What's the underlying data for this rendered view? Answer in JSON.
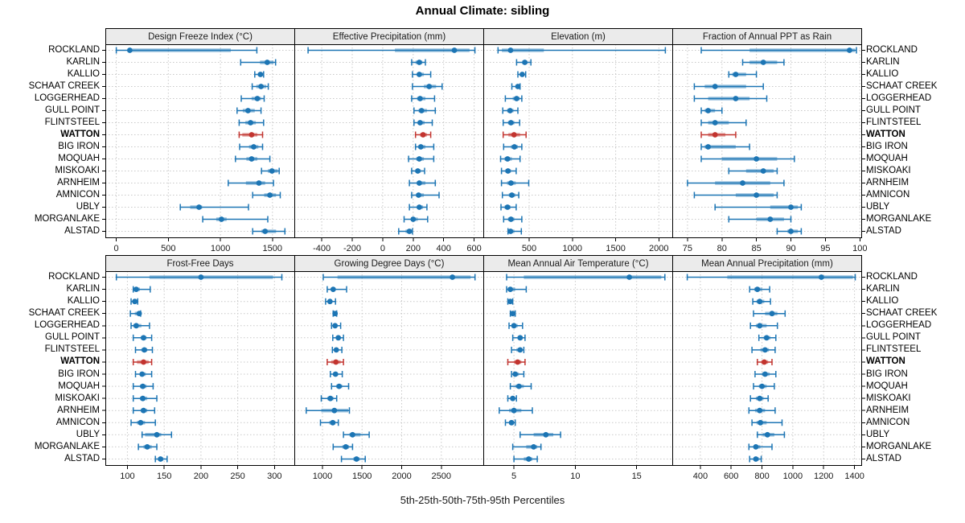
{
  "title": "Annual Climate: sibling",
  "caption": "5th-25th-50th-75th-95th Percentiles",
  "percentiles": [
    5,
    25,
    50,
    75,
    95
  ],
  "stations": [
    "ROCKLAND",
    "KARLIN",
    "KALLIO",
    "SCHAAT CREEK",
    "LOGGERHEAD",
    "GULL POINT",
    "FLINTSTEEL",
    "WATTON",
    "BIG IRON",
    "MOQUAH",
    "MISKOAKI",
    "ARNHEIM",
    "AMNICON",
    "UBLY",
    "MORGANLAKE",
    "ALSTAD"
  ],
  "highlight_station": "WATTON",
  "colors": {
    "series": "#1c75b4",
    "highlight": "#c2342f",
    "strip_bg": "#ebebeb",
    "grid": "#c9c9c9",
    "border": "#000000",
    "tick_label": "#1a1a1a"
  },
  "chart_data": [
    {
      "type": "dotplot",
      "title": "Design Freeze Index (°C)",
      "xlim": [
        -105,
        1710
      ],
      "ticks": [
        0,
        500,
        1000,
        1500
      ],
      "values_note": "rows aligned to stations; each row = [p5,p25,p50,p75,p95]",
      "values": [
        [
          0,
          110,
          130,
          1100,
          1350
        ],
        [
          1195,
          1380,
          1450,
          1510,
          1530
        ],
        [
          1330,
          1360,
          1385,
          1405,
          1415
        ],
        [
          1305,
          1345,
          1390,
          1440,
          1460
        ],
        [
          1200,
          1300,
          1355,
          1390,
          1420
        ],
        [
          1160,
          1215,
          1265,
          1330,
          1390
        ],
        [
          1180,
          1240,
          1290,
          1340,
          1415
        ],
        [
          1180,
          1210,
          1300,
          1355,
          1405
        ],
        [
          1185,
          1275,
          1320,
          1365,
          1405
        ],
        [
          1145,
          1250,
          1300,
          1355,
          1475
        ],
        [
          1395,
          1455,
          1495,
          1550,
          1565
        ],
        [
          1075,
          1245,
          1370,
          1430,
          1510
        ],
        [
          1310,
          1420,
          1475,
          1535,
          1575
        ],
        [
          615,
          710,
          795,
          825,
          1270
        ],
        [
          830,
          960,
          1010,
          1060,
          1455
        ],
        [
          1310,
          1395,
          1430,
          1535,
          1620
        ]
      ]
    },
    {
      "type": "dotplot",
      "title": "Effective Precipitation (mm)",
      "xlim": [
        -580,
        660
      ],
      "ticks": [
        -400,
        -200,
        0,
        200,
        400,
        600
      ],
      "values": [
        [
          -490,
          80,
          470,
          570,
          605
        ],
        [
          190,
          215,
          240,
          260,
          280
        ],
        [
          195,
          225,
          240,
          270,
          315
        ],
        [
          195,
          270,
          305,
          350,
          390
        ],
        [
          190,
          225,
          245,
          280,
          340
        ],
        [
          205,
          235,
          255,
          290,
          345
        ],
        [
          205,
          230,
          245,
          275,
          325
        ],
        [
          215,
          245,
          265,
          290,
          315
        ],
        [
          215,
          235,
          250,
          280,
          335
        ],
        [
          170,
          220,
          240,
          270,
          335
        ],
        [
          190,
          215,
          230,
          250,
          275
        ],
        [
          175,
          225,
          240,
          280,
          345
        ],
        [
          190,
          220,
          235,
          270,
          370
        ],
        [
          175,
          225,
          240,
          265,
          290
        ],
        [
          140,
          185,
          200,
          230,
          295
        ],
        [
          105,
          150,
          175,
          190,
          195
        ]
      ]
    },
    {
      "type": "dotplot",
      "title": "Elevation (m)",
      "xlim": [
        -30,
        2155
      ],
      "ticks": [
        500,
        1000,
        1500,
        2000
      ],
      "values": [
        [
          140,
          185,
          285,
          670,
          2075
        ],
        [
          355,
          420,
          450,
          480,
          520
        ],
        [
          370,
          400,
          420,
          440,
          460
        ],
        [
          300,
          345,
          370,
          385,
          395
        ],
        [
          225,
          310,
          355,
          390,
          415
        ],
        [
          195,
          245,
          280,
          320,
          370
        ],
        [
          200,
          255,
          290,
          330,
          390
        ],
        [
          200,
          260,
          325,
          395,
          465
        ],
        [
          205,
          290,
          330,
          370,
          415
        ],
        [
          170,
          215,
          250,
          300,
          395
        ],
        [
          180,
          225,
          255,
          290,
          350
        ],
        [
          180,
          245,
          290,
          345,
          495
        ],
        [
          190,
          265,
          300,
          340,
          380
        ],
        [
          175,
          215,
          250,
          285,
          350
        ],
        [
          205,
          255,
          290,
          330,
          415
        ],
        [
          255,
          270,
          285,
          330,
          410
        ]
      ]
    },
    {
      "type": "dotplot",
      "title": "Fraction of Annual PPT as Rain",
      "xlim": [
        72.8,
        100.2
      ],
      "ticks": [
        75,
        80,
        85,
        90,
        95,
        100
      ],
      "values": [
        [
          77,
          84,
          98.5,
          99.3,
          99.5
        ],
        [
          83,
          84,
          86,
          88,
          89
        ],
        [
          81,
          81.5,
          82,
          83.5,
          85
        ],
        [
          76,
          77.5,
          79,
          83.5,
          86
        ],
        [
          76,
          78,
          82,
          84,
          86.5
        ],
        [
          77,
          77.5,
          78,
          79,
          80
        ],
        [
          77,
          78,
          79,
          81,
          83.5
        ],
        [
          77,
          78,
          79,
          80.5,
          82
        ],
        [
          77,
          77.5,
          78,
          82,
          84
        ],
        [
          77,
          80,
          85,
          88,
          90.5
        ],
        [
          81,
          83.5,
          86,
          87.5,
          88
        ],
        [
          75,
          79,
          83,
          87,
          89
        ],
        [
          76,
          82,
          85,
          87.5,
          88
        ],
        [
          79,
          87,
          90,
          91,
          91.5
        ],
        [
          81,
          85,
          87,
          89,
          90
        ],
        [
          88,
          89.5,
          90,
          91,
          91.5
        ]
      ]
    },
    {
      "type": "dotplot",
      "title": "Frost-Free Days",
      "xlim": [
        70,
        327
      ],
      "ticks": [
        100,
        150,
        200,
        250,
        300
      ],
      "values": [
        [
          85,
          130,
          200,
          298,
          310
        ],
        [
          108,
          110,
          112,
          117,
          131
        ],
        [
          105,
          108,
          110,
          112,
          114
        ],
        [
          104,
          110,
          116,
          117,
          118
        ],
        [
          105,
          108,
          112,
          119,
          130
        ],
        [
          108,
          118,
          122,
          126,
          133
        ],
        [
          111,
          119,
          123,
          127,
          134
        ],
        [
          108,
          113,
          122,
          129,
          133
        ],
        [
          111,
          117,
          120,
          125,
          133
        ],
        [
          108,
          117,
          121,
          126,
          135
        ],
        [
          108,
          117,
          121,
          127,
          140
        ],
        [
          108,
          118,
          122,
          127,
          137
        ],
        [
          105,
          113,
          118,
          124,
          138
        ],
        [
          120,
          124,
          140,
          146,
          160
        ],
        [
          115,
          122,
          127,
          133,
          140
        ],
        [
          138,
          142,
          145,
          149,
          154
        ]
      ]
    },
    {
      "type": "dotplot",
      "title": "Growing Degree Days (°C)",
      "xlim": [
        645,
        3030
      ],
      "ticks": [
        1000,
        1500,
        2000,
        2500
      ],
      "values": [
        [
          1010,
          1190,
          2640,
          2870,
          2925
        ],
        [
          1060,
          1110,
          1135,
          1165,
          1305
        ],
        [
          1040,
          1075,
          1095,
          1120,
          1165
        ],
        [
          1135,
          1150,
          1160,
          1172,
          1180
        ],
        [
          1115,
          1140,
          1160,
          1185,
          1230
        ],
        [
          1130,
          1170,
          1200,
          1225,
          1265
        ],
        [
          1125,
          1155,
          1175,
          1200,
          1245
        ],
        [
          1060,
          1110,
          1170,
          1230,
          1265
        ],
        [
          1100,
          1140,
          1165,
          1195,
          1250
        ],
        [
          1115,
          1175,
          1210,
          1250,
          1330
        ],
        [
          985,
          1060,
          1100,
          1140,
          1180
        ],
        [
          795,
          985,
          1150,
          1325,
          1340
        ],
        [
          975,
          1085,
          1130,
          1165,
          1200
        ],
        [
          1265,
          1340,
          1380,
          1480,
          1590
        ],
        [
          1135,
          1250,
          1295,
          1335,
          1380
        ],
        [
          1240,
          1390,
          1430,
          1470,
          1540
        ]
      ]
    },
    {
      "type": "dotplot",
      "title": "Mean Annual Air Temperature (°C)",
      "xlim": [
        2.5,
        17.9
      ],
      "ticks": [
        5,
        10,
        15
      ],
      "values": [
        [
          4.4,
          5.8,
          14.4,
          17.0,
          17.3
        ],
        [
          4.4,
          4.5,
          4.7,
          5.1,
          6.0
        ],
        [
          4.5,
          4.6,
          4.7,
          4.8,
          4.9
        ],
        [
          4.7,
          4.8,
          4.9,
          5.0,
          5.1
        ],
        [
          4.6,
          4.8,
          5.0,
          5.3,
          5.7
        ],
        [
          4.9,
          5.3,
          5.5,
          5.7,
          5.9
        ],
        [
          4.8,
          5.2,
          5.5,
          5.6,
          5.8
        ],
        [
          4.5,
          5.0,
          5.3,
          5.6,
          5.9
        ],
        [
          4.8,
          5.0,
          5.1,
          5.4,
          5.8
        ],
        [
          4.7,
          5.1,
          5.4,
          5.8,
          6.4
        ],
        [
          4.5,
          4.7,
          4.9,
          5.0,
          5.2
        ],
        [
          3.8,
          4.6,
          5.0,
          5.6,
          6.5
        ],
        [
          4.3,
          4.6,
          4.8,
          5.0,
          5.1
        ],
        [
          5.5,
          6.6,
          7.6,
          8.2,
          8.8
        ],
        [
          4.9,
          6.0,
          6.6,
          6.9,
          7.2
        ],
        [
          5.0,
          5.8,
          6.2,
          6.5,
          6.9
        ]
      ]
    },
    {
      "type": "dotplot",
      "title": "Mean Annual Precipitation (mm)",
      "xlim": [
        218,
        1444
      ],
      "ticks": [
        400,
        600,
        800,
        1000,
        1200,
        1400
      ],
      "values": [
        [
          315,
          575,
          1185,
          1390,
          1405
        ],
        [
          720,
          750,
          770,
          800,
          850
        ],
        [
          740,
          765,
          785,
          815,
          855
        ],
        [
          745,
          820,
          865,
          900,
          950
        ],
        [
          725,
          760,
          785,
          830,
          900
        ],
        [
          780,
          810,
          830,
          855,
          890
        ],
        [
          735,
          790,
          820,
          845,
          885
        ],
        [
          770,
          795,
          815,
          840,
          865
        ],
        [
          755,
          800,
          820,
          850,
          890
        ],
        [
          745,
          780,
          800,
          830,
          880
        ],
        [
          725,
          760,
          785,
          810,
          840
        ],
        [
          715,
          755,
          785,
          820,
          885
        ],
        [
          735,
          765,
          790,
          830,
          930
        ],
        [
          770,
          805,
          835,
          880,
          945
        ],
        [
          715,
          745,
          760,
          790,
          865
        ],
        [
          720,
          745,
          760,
          780,
          795
        ]
      ]
    }
  ]
}
